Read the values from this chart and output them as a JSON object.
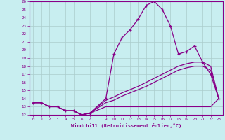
{
  "xlabel": "Windchill (Refroidissement éolien,°C)",
  "bg_color": "#c8eef0",
  "grid_color": "#aacccc",
  "line_color": "#880088",
  "xlim": [
    -0.5,
    23.5
  ],
  "ylim": [
    12,
    26
  ],
  "xticks": [
    0,
    1,
    2,
    3,
    4,
    5,
    6,
    7,
    9,
    10,
    11,
    12,
    13,
    14,
    15,
    16,
    17,
    18,
    19,
    20,
    21,
    22,
    23
  ],
  "yticks": [
    12,
    13,
    14,
    15,
    16,
    17,
    18,
    19,
    20,
    21,
    22,
    23,
    24,
    25,
    26
  ],
  "line1_x": [
    0,
    1,
    2,
    3,
    4,
    5,
    6,
    7,
    9,
    10,
    11,
    12,
    13,
    14,
    15,
    16,
    17,
    18,
    19,
    20,
    21,
    22,
    23
  ],
  "line1_y": [
    13.5,
    13.5,
    13.0,
    13.0,
    12.5,
    12.5,
    12.0,
    12.2,
    14.0,
    19.5,
    21.5,
    22.5,
    23.8,
    25.5,
    26.0,
    25.0,
    23.0,
    19.5,
    19.8,
    20.5,
    18.5,
    17.0,
    14.0
  ],
  "line2_x": [
    0,
    1,
    2,
    3,
    4,
    5,
    6,
    7,
    9,
    10,
    11,
    12,
    13,
    14,
    15,
    16,
    17,
    18,
    19,
    20,
    21,
    22,
    23
  ],
  "line2_y": [
    13.5,
    13.5,
    13.0,
    13.0,
    12.5,
    12.5,
    12.0,
    12.2,
    13.8,
    14.2,
    14.7,
    15.1,
    15.5,
    16.0,
    16.5,
    17.0,
    17.5,
    18.0,
    18.3,
    18.5,
    18.5,
    18.0,
    14.0
  ],
  "line3_x": [
    0,
    1,
    2,
    3,
    4,
    5,
    6,
    7,
    9,
    10,
    11,
    12,
    13,
    14,
    15,
    16,
    17,
    18,
    19,
    20,
    21,
    22,
    23
  ],
  "line3_y": [
    13.5,
    13.5,
    13.0,
    13.0,
    12.5,
    12.5,
    12.0,
    12.2,
    13.5,
    13.8,
    14.3,
    14.7,
    15.1,
    15.5,
    16.0,
    16.5,
    17.0,
    17.5,
    17.8,
    18.0,
    18.0,
    17.5,
    14.0
  ],
  "line4_x": [
    0,
    1,
    2,
    3,
    4,
    5,
    6,
    7,
    9,
    10,
    11,
    12,
    13,
    14,
    15,
    16,
    17,
    18,
    19,
    20,
    21,
    22,
    23
  ],
  "line4_y": [
    13.5,
    13.5,
    13.0,
    13.0,
    12.5,
    12.5,
    12.0,
    12.2,
    13.0,
    13.0,
    13.0,
    13.0,
    13.0,
    13.0,
    13.0,
    13.0,
    13.0,
    13.0,
    13.0,
    13.0,
    13.0,
    13.0,
    14.0
  ]
}
